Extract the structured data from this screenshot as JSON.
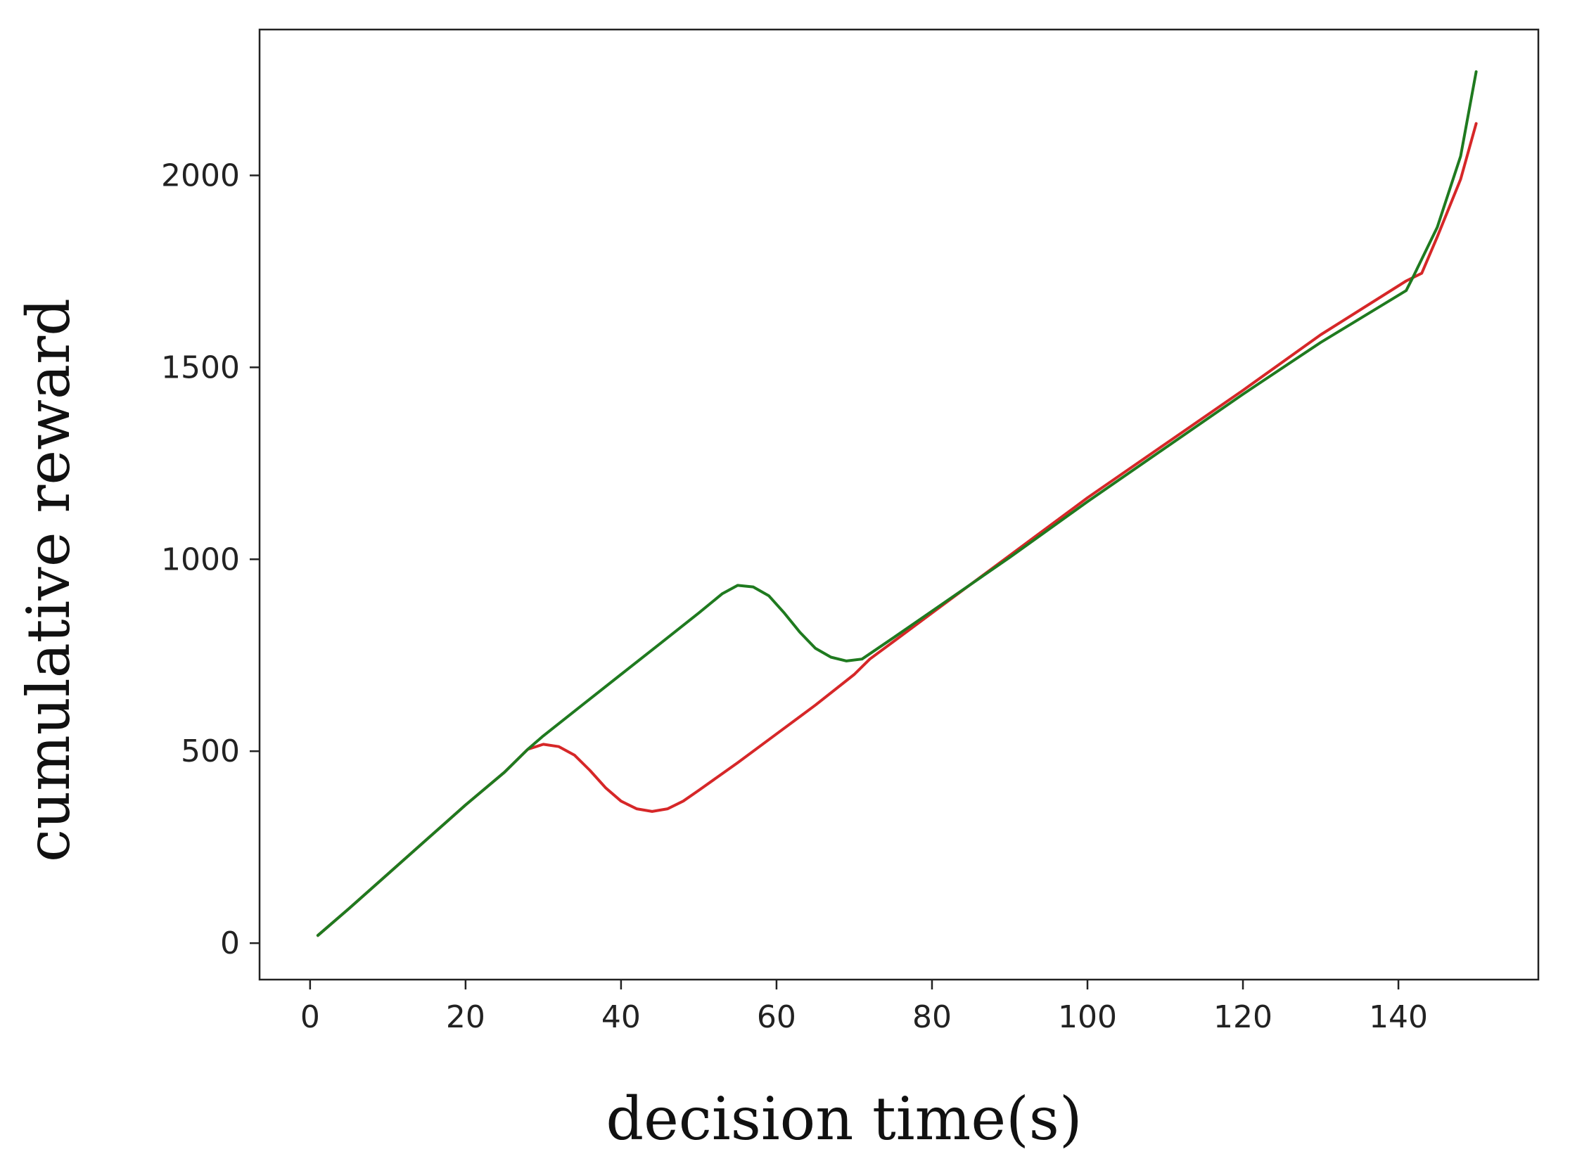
{
  "chart_data": {
    "type": "line",
    "xlabel": "decision time(s)",
    "ylabel": "cumulative reward",
    "xlim": [
      -6.5,
      158
    ],
    "ylim": [
      -95,
      2380
    ],
    "x_ticks": [
      0,
      20,
      40,
      60,
      80,
      100,
      120,
      140
    ],
    "y_ticks": [
      0,
      500,
      1000,
      1500,
      2000
    ],
    "grid": false,
    "legend": "none",
    "series": [
      {
        "color": "#d62728",
        "points": [
          [
            1,
            20
          ],
          [
            5,
            90
          ],
          [
            10,
            180
          ],
          [
            15,
            270
          ],
          [
            20,
            360
          ],
          [
            25,
            445
          ],
          [
            28,
            505
          ],
          [
            30,
            518
          ],
          [
            32,
            512
          ],
          [
            34,
            490
          ],
          [
            36,
            450
          ],
          [
            38,
            405
          ],
          [
            40,
            370
          ],
          [
            42,
            350
          ],
          [
            44,
            343
          ],
          [
            46,
            350
          ],
          [
            48,
            370
          ],
          [
            50,
            398
          ],
          [
            55,
            470
          ],
          [
            60,
            545
          ],
          [
            65,
            620
          ],
          [
            70,
            700
          ],
          [
            72,
            740
          ],
          [
            80,
            860
          ],
          [
            90,
            1010
          ],
          [
            100,
            1160
          ],
          [
            110,
            1300
          ],
          [
            120,
            1440
          ],
          [
            130,
            1585
          ],
          [
            141,
            1725
          ],
          [
            143,
            1745
          ],
          [
            145,
            1840
          ],
          [
            148,
            1990
          ],
          [
            150,
            2135
          ]
        ]
      },
      {
        "color": "#1f7a1f",
        "points": [
          [
            1,
            20
          ],
          [
            5,
            90
          ],
          [
            10,
            180
          ],
          [
            15,
            270
          ],
          [
            20,
            360
          ],
          [
            25,
            445
          ],
          [
            28,
            505
          ],
          [
            30,
            540
          ],
          [
            35,
            620
          ],
          [
            40,
            700
          ],
          [
            45,
            780
          ],
          [
            50,
            860
          ],
          [
            53,
            910
          ],
          [
            55,
            932
          ],
          [
            57,
            928
          ],
          [
            59,
            905
          ],
          [
            61,
            860
          ],
          [
            63,
            810
          ],
          [
            65,
            768
          ],
          [
            67,
            745
          ],
          [
            69,
            735
          ],
          [
            71,
            740
          ],
          [
            75,
            795
          ],
          [
            80,
            865
          ],
          [
            90,
            1005
          ],
          [
            100,
            1150
          ],
          [
            110,
            1290
          ],
          [
            120,
            1430
          ],
          [
            130,
            1565
          ],
          [
            141,
            1700
          ],
          [
            142,
            1740
          ],
          [
            145,
            1865
          ],
          [
            148,
            2050
          ],
          [
            150,
            2270
          ]
        ]
      }
    ]
  }
}
